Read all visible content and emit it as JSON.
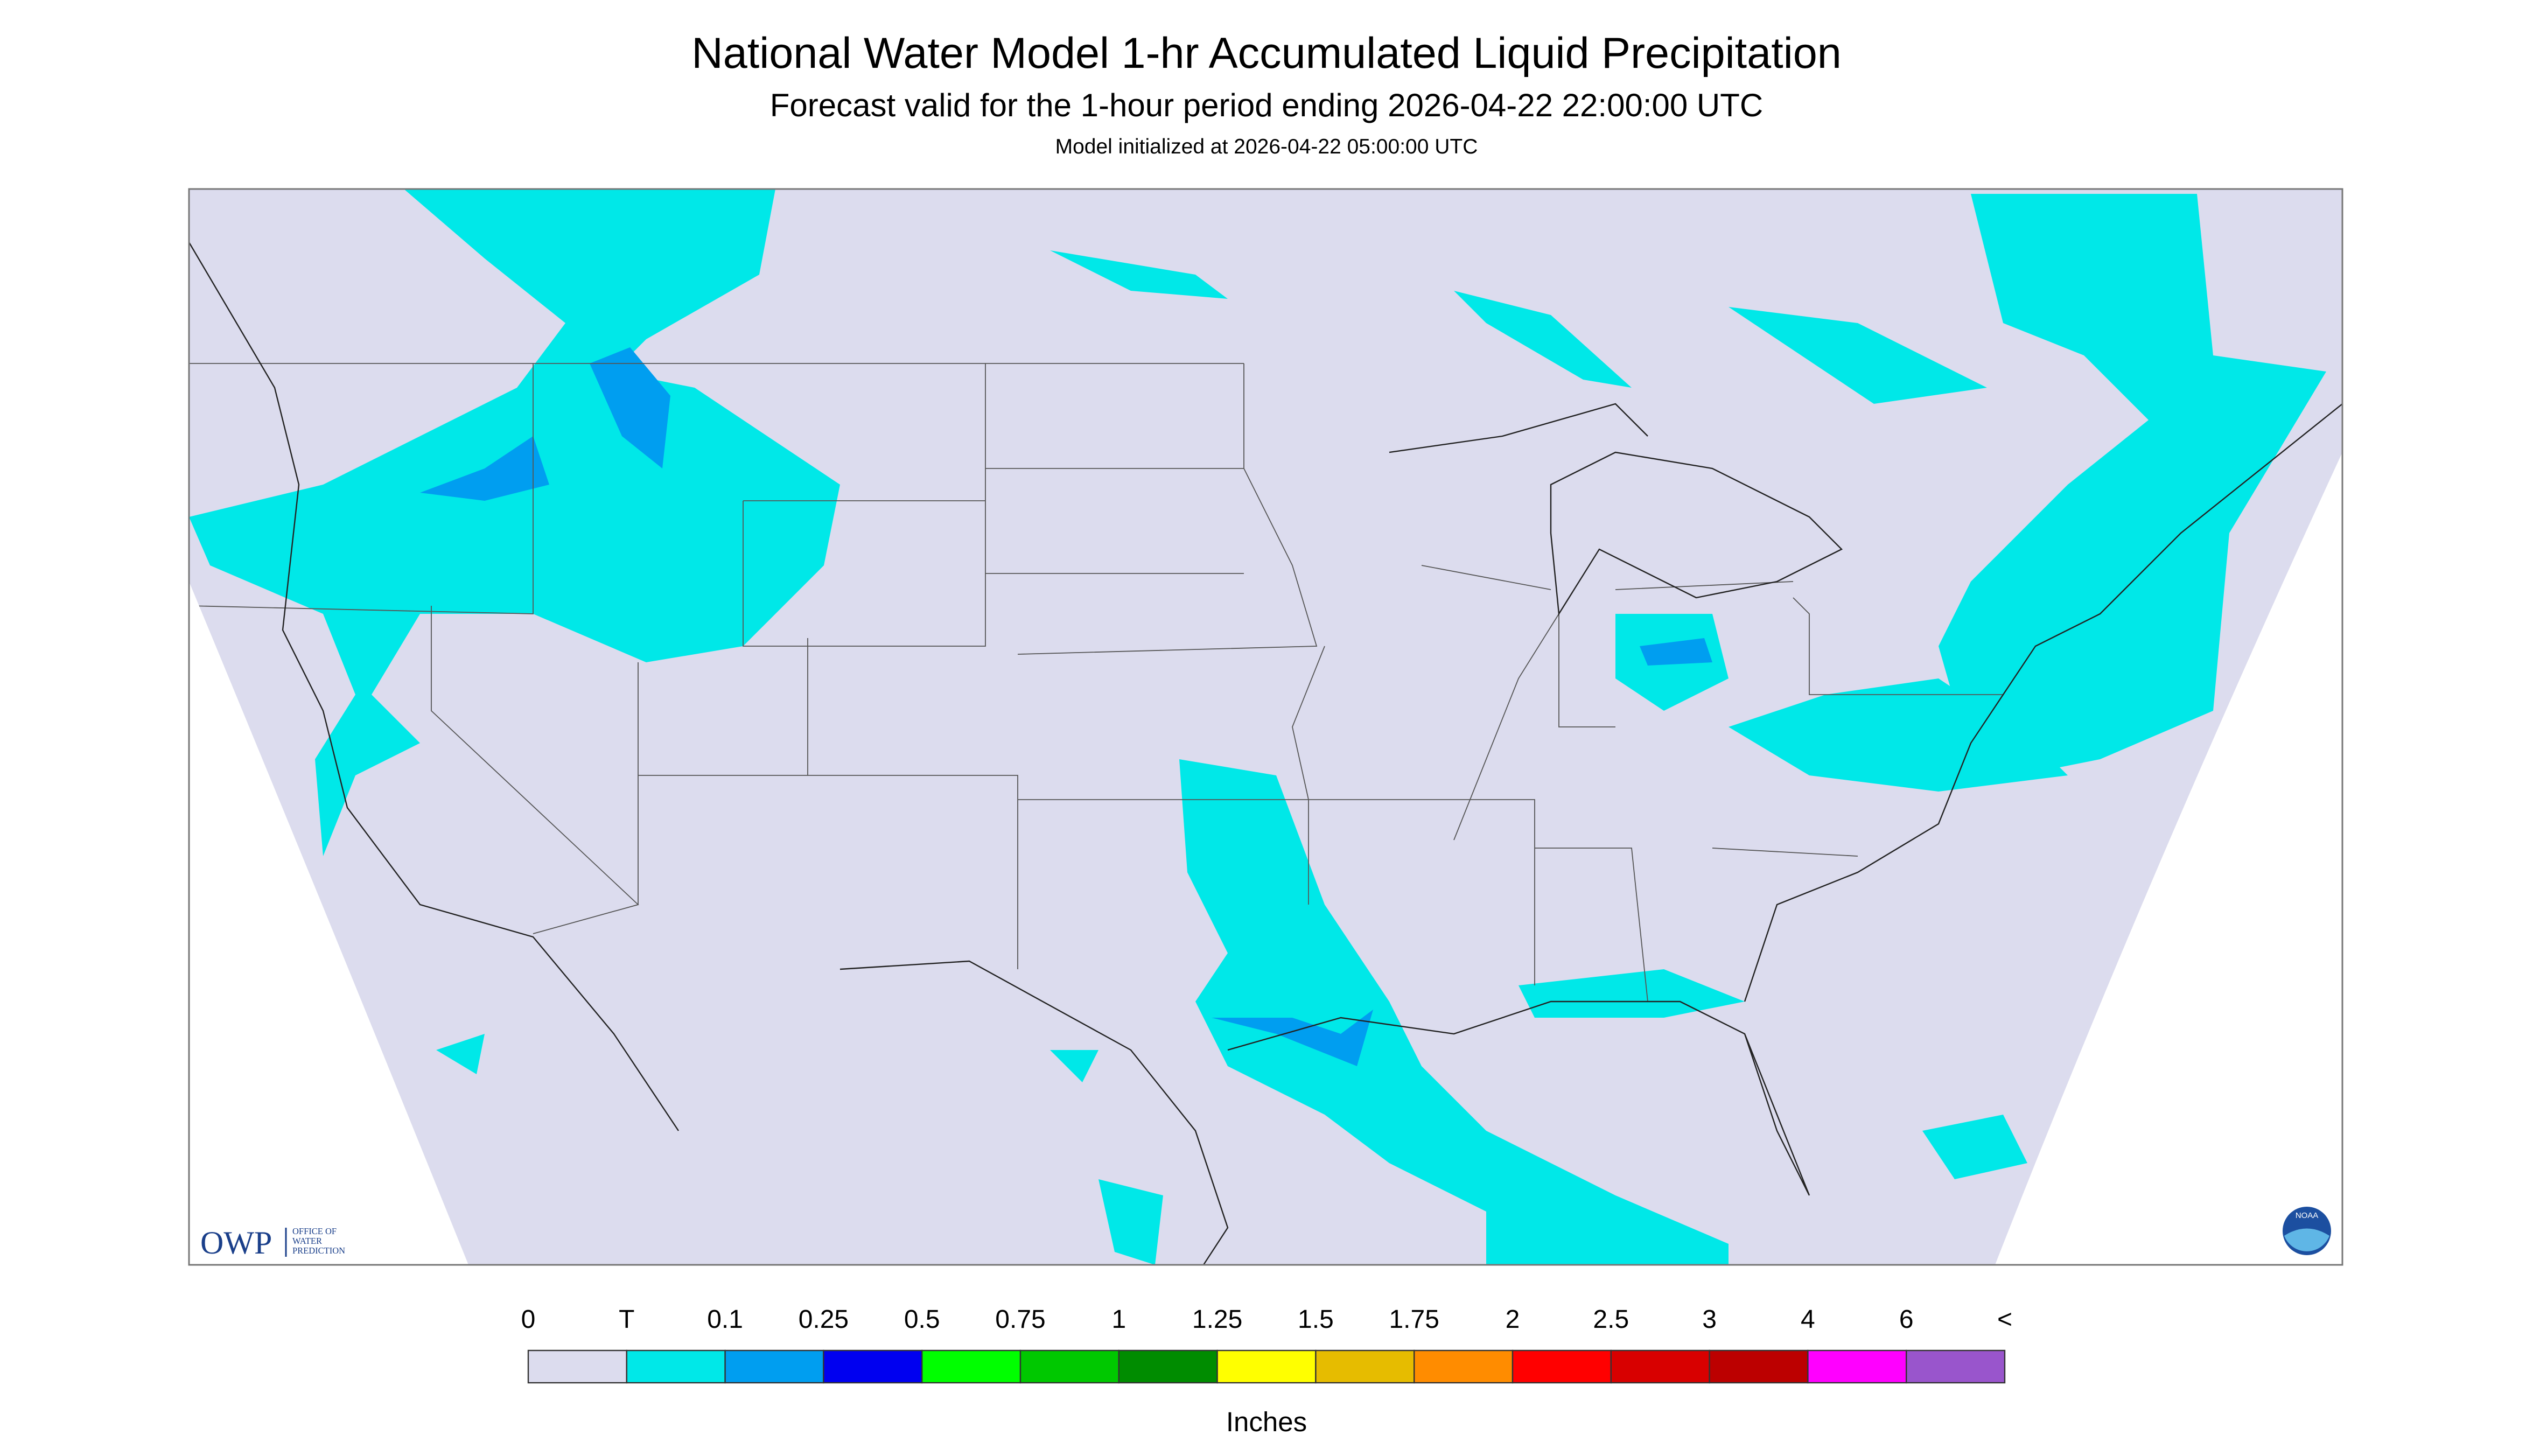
{
  "header": {
    "title": "National Water Model 1-hr Accumulated Liquid Precipitation",
    "subtitle": "Forecast valid for the 1-hour period ending 2026-04-22 22:00:00 UTC",
    "init": "Model initialized at 2026-04-22 05:00:00 UTC"
  },
  "logos": {
    "owp": "OWP",
    "owp_text": [
      "OFFICE OF",
      "WATER",
      "PREDICTION"
    ],
    "noaa": "NOAA"
  },
  "legend": {
    "labels": [
      "0",
      "T",
      "0.1",
      "0.25",
      "0.5",
      "0.75",
      "1",
      "1.25",
      "1.5",
      "1.75",
      "2",
      "2.5",
      "3",
      "4",
      "6",
      "<"
    ],
    "colors": [
      "#dcdcee",
      "#00e8e8",
      "#009ef0",
      "#0000f0",
      "#00ff00",
      "#00c800",
      "#008c00",
      "#ffff00",
      "#e6bc00",
      "#ff8c00",
      "#ff0000",
      "#d80000",
      "#bc0000",
      "#ff00ff",
      "#9955cc"
    ],
    "units": "Inches"
  }
}
